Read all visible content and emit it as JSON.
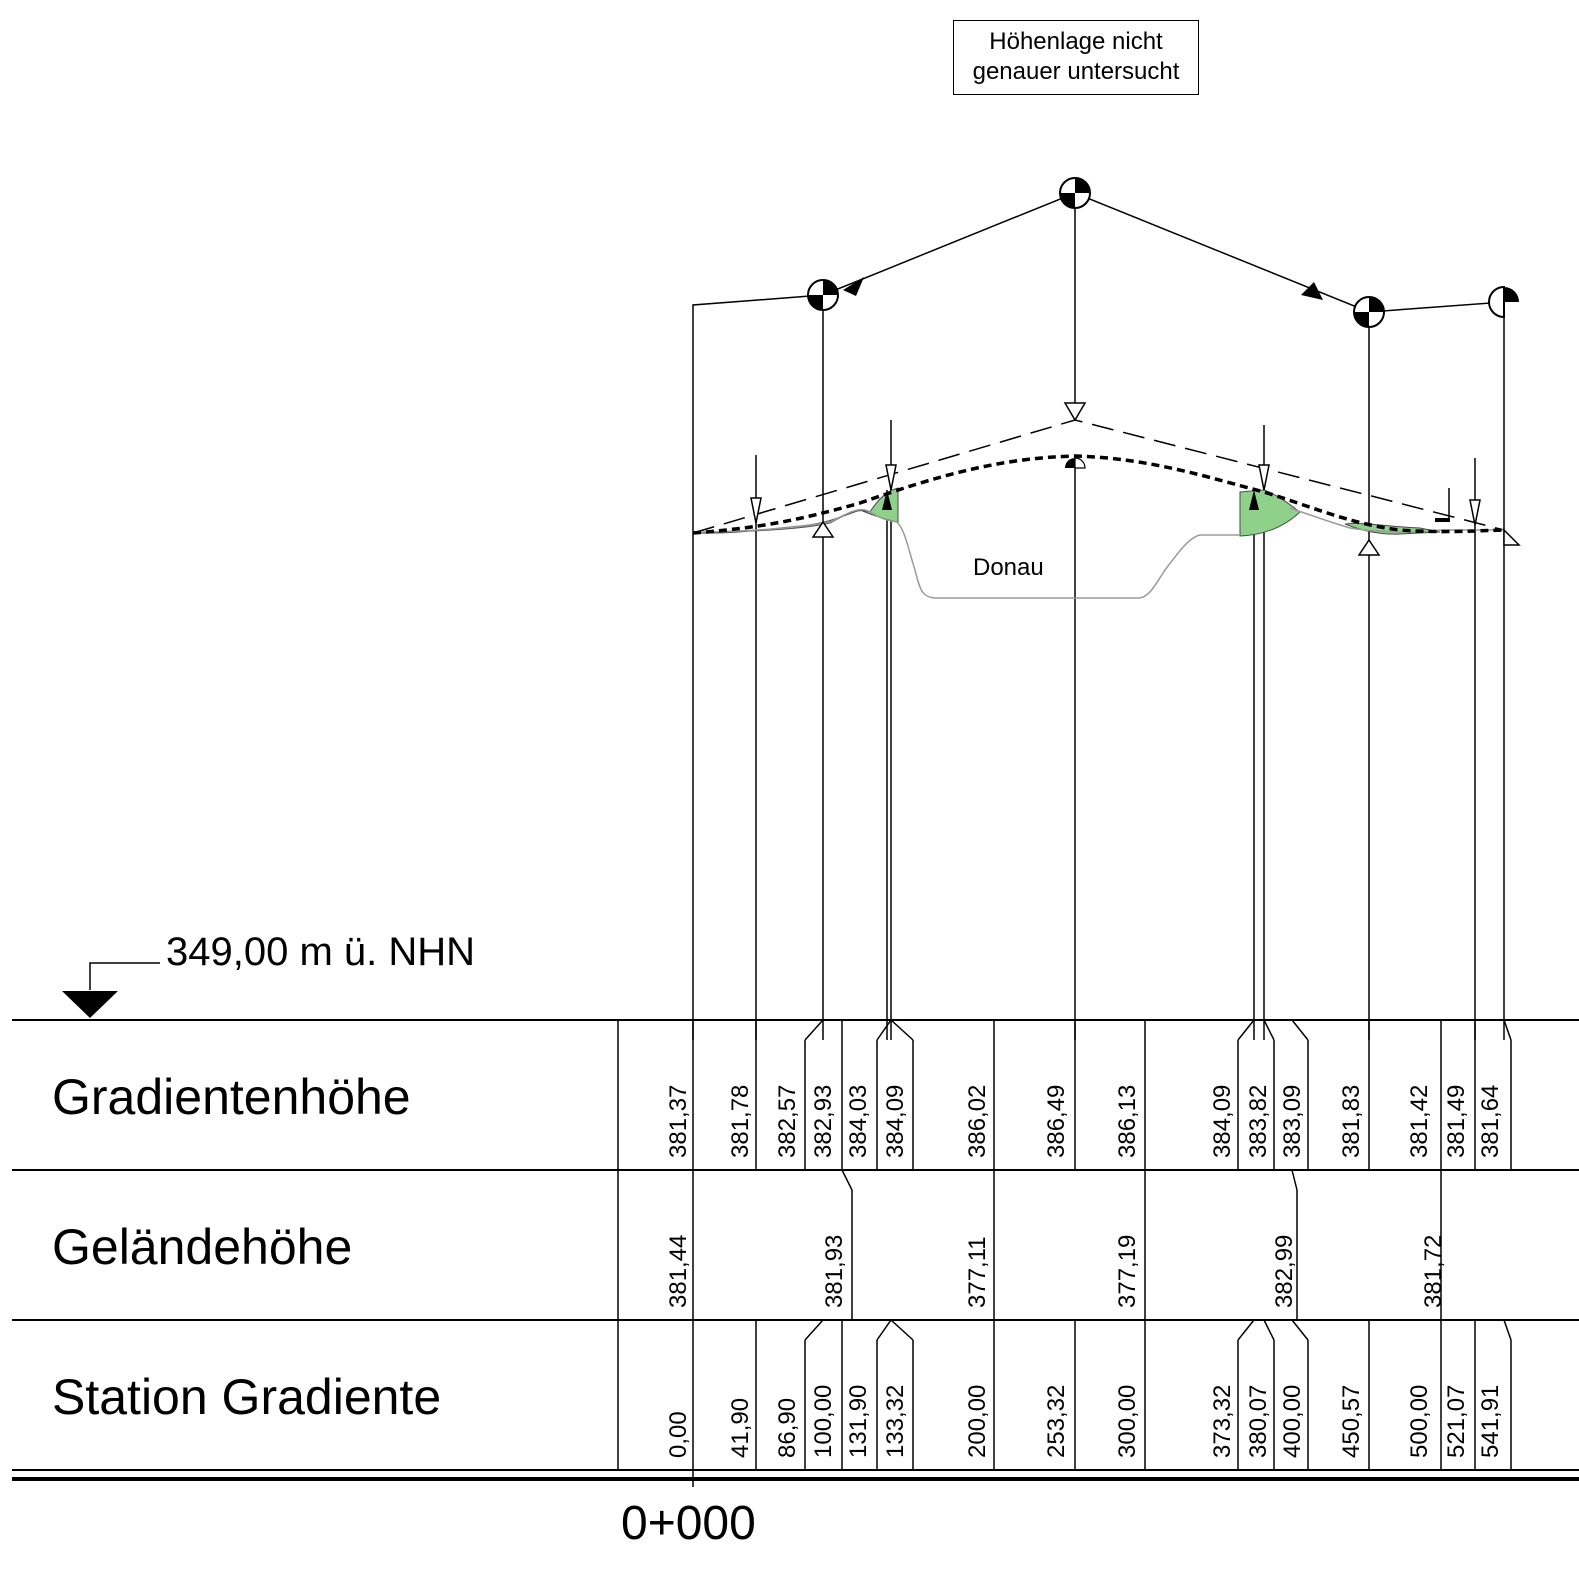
{
  "note": {
    "line1": "Höhenlage nicht",
    "line2": "genauer untersucht"
  },
  "river_label": "Donau",
  "datum_label": "349,00 m ü. NHN",
  "start_station_label": "0+000",
  "rows": {
    "gradient_height": "Gradientenhöhe",
    "terrain_height": "Geländehöhe",
    "station": "Station Gradiente"
  },
  "colors": {
    "embankment_fill": "#8fd18a",
    "ground_line": "#9a9a9a",
    "line": "#000000"
  },
  "gradient_values": [
    "381,37",
    "381,78",
    "382,57",
    "382,93",
    "384,03",
    "384,09",
    "386,02",
    "386,49",
    "386,13",
    "384,09",
    "383,82",
    "383,09",
    "381,83",
    "381,42",
    "381,49",
    "381,64"
  ],
  "terrain_values": [
    "381,44",
    "381,93",
    "377,11",
    "377,19",
    "382,99",
    "381,72"
  ],
  "station_values": [
    "0,00",
    "41,90",
    "86,90",
    "100,00",
    "131,90",
    "133,32",
    "200,00",
    "253,32",
    "300,00",
    "373,32",
    "380,07",
    "400,00",
    "450,57",
    "500,00",
    "521,07",
    "541,91"
  ]
}
